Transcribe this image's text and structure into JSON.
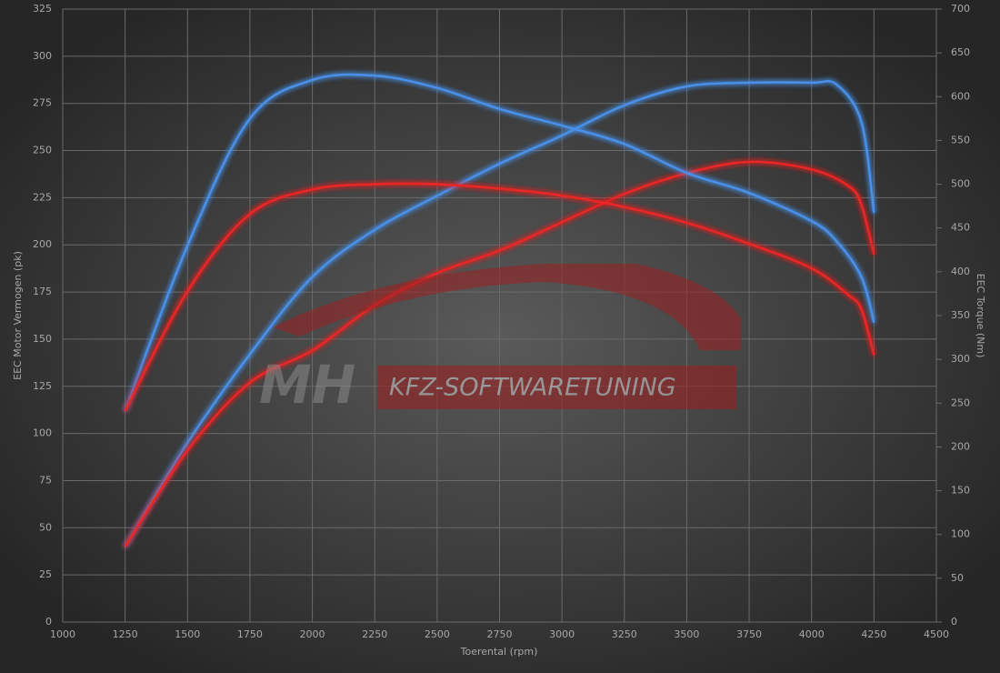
{
  "chart_data": {
    "type": "line",
    "xlabel": "Toerental (rpm)",
    "ylabel": "EEC Motor Vermogen (pk)",
    "y2label": "EEC Torque (Nm)",
    "watermark": {
      "logo": "MH",
      "text": "KFZ-SOFTWARETUNING"
    },
    "xlim": [
      1000,
      4500
    ],
    "xticks": [
      1000,
      1250,
      1500,
      1750,
      2000,
      2250,
      2500,
      2750,
      3000,
      3250,
      3500,
      3750,
      4000,
      4250,
      4500
    ],
    "ylim": [
      0,
      325
    ],
    "yticks": [
      0,
      25,
      50,
      75,
      100,
      125,
      150,
      175,
      200,
      225,
      250,
      275,
      300,
      325
    ],
    "y2lim": [
      0,
      700
    ],
    "y2ticks": [
      0,
      50,
      100,
      150,
      200,
      250,
      300,
      350,
      400,
      450,
      500,
      550,
      600,
      650,
      700
    ],
    "grid": true,
    "series": [
      {
        "color": "#4a90e8",
        "x": [
          1250,
          1500,
          1750,
          2000,
          2250,
          2500,
          2750,
          3000,
          3250,
          3500,
          3750,
          4000,
          4100,
          4200,
          4250
        ],
        "values": [
          40,
          95,
          142,
          183,
          208,
          226,
          243,
          258,
          274,
          284,
          286,
          286,
          285,
          265,
          217
        ]
      },
      {
        "color": "#e82828",
        "x": [
          1250,
          1500,
          1750,
          2000,
          2250,
          2500,
          2750,
          3000,
          3250,
          3500,
          3750,
          4000,
          4150,
          4200,
          4250
        ],
        "values": [
          40,
          91,
          127,
          144,
          168,
          185,
          197,
          212,
          227,
          238,
          244,
          240,
          231,
          221,
          195
        ]
      },
      {
        "color": "#4a90e8",
        "axis": "y2",
        "x": [
          1250,
          1500,
          1750,
          2000,
          2250,
          2500,
          2750,
          3000,
          3250,
          3500,
          3750,
          4000,
          4100,
          4200,
          4250
        ],
        "values": [
          241,
          430,
          575,
          619,
          624,
          610,
          586,
          567,
          546,
          513,
          490,
          458,
          435,
          394,
          342
        ]
      },
      {
        "color": "#e82828",
        "axis": "y2",
        "x": [
          1250,
          1500,
          1750,
          2000,
          2250,
          2500,
          2750,
          3000,
          3250,
          3500,
          3750,
          4000,
          4150,
          4200,
          4250
        ],
        "values": [
          241,
          378,
          466,
          494,
          500,
          500,
          495,
          487,
          474,
          456,
          432,
          404,
          373,
          357,
          305
        ]
      }
    ]
  }
}
